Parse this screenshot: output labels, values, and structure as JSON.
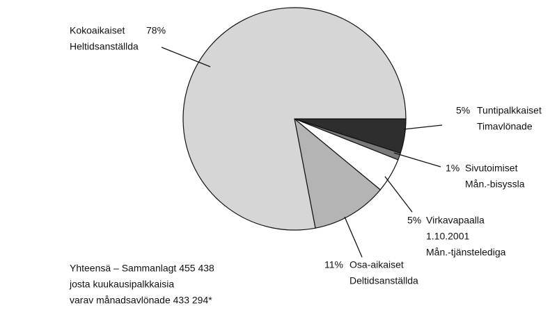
{
  "chart_data": {
    "type": "pie",
    "categories": [
      [
        "Tuntipalkkaiset",
        "Timavlönade"
      ],
      [
        "Sivutoimiset",
        "Mån.-bisyssla"
      ],
      [
        "Virkavapaalla",
        "1.10.2001",
        "Mån.-tjänstelediga"
      ],
      [
        "Osa-aikaiset",
        "Deltidsanställda"
      ],
      [
        "Kokoaikaiset",
        "Heltidsanställda"
      ]
    ],
    "values": [
      5,
      1,
      5,
      11,
      78
    ],
    "value_labels": [
      "5%",
      "1%",
      "5%",
      "11%",
      "78%"
    ],
    "colors": [
      "#2e2e2e",
      "#7a7a7a",
      "#ffffff",
      "#b4b4b4",
      "#d6d6d6"
    ],
    "note": [
      "Yhteensä – Sammanlagt 455 438",
      "josta kuukausipalkkaisia",
      "varav månadsavlönade 433 294*"
    ]
  }
}
